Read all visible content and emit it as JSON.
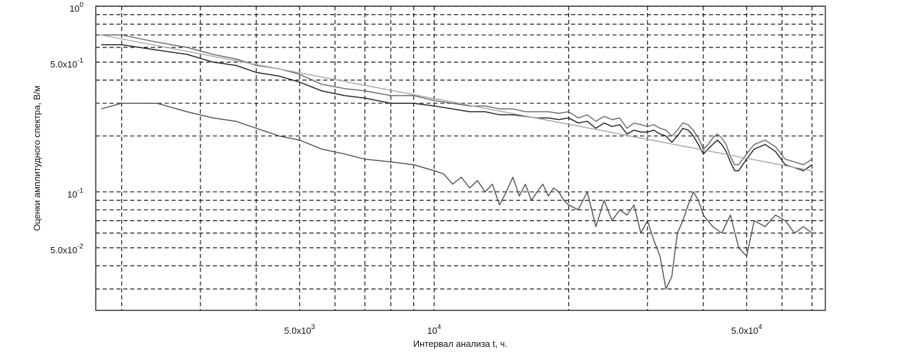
{
  "chart_data": {
    "type": "line",
    "xlabel": "Интервал анализа t, ч.",
    "ylabel": "Оценки амплитудного спектра, В/м",
    "xscale": "log",
    "yscale": "log",
    "xlim": [
      1750,
      75000
    ],
    "ylim": [
      0.023,
      1.0
    ],
    "x_ticks": [
      {
        "value": 5000,
        "mantissa": "5.0x10",
        "exp": "3"
      },
      {
        "value": 10000,
        "mantissa": "10",
        "exp": "4"
      },
      {
        "value": 50000,
        "mantissa": "5.0x10",
        "exp": "4"
      }
    ],
    "y_ticks": [
      {
        "value": 1.0,
        "mantissa": "10",
        "exp": "0"
      },
      {
        "value": 0.5,
        "mantissa": "5.0x10",
        "exp": "-1"
      },
      {
        "value": 0.1,
        "mantissa": "10",
        "exp": "-1"
      },
      {
        "value": 0.05,
        "mantissa": "5.0x10",
        "exp": "-2"
      }
    ],
    "x_gridlines": [
      2000,
      3000,
      4000,
      5000,
      6000,
      7000,
      8000,
      9000,
      10000,
      20000,
      30000,
      40000,
      50000,
      60000,
      70000
    ],
    "y_gridlines": [
      0.03,
      0.04,
      0.05,
      0.06,
      0.07,
      0.08,
      0.09,
      0.1,
      0.2,
      0.3,
      0.4,
      0.5,
      0.6,
      0.7,
      0.8,
      0.9,
      1.0
    ],
    "grid": true,
    "series": [
      {
        "color": "#222222",
        "x": [
          1800,
          2000,
          2400,
          2800,
          3200,
          3600,
          4000,
          4500,
          5000,
          5600,
          6300,
          7000,
          8000,
          9000,
          10000,
          11000,
          12000,
          13000,
          14000,
          15000,
          16000,
          17000,
          18000,
          19000,
          20000,
          21000,
          22000,
          23000,
          24000,
          25000,
          26000,
          27000,
          28000,
          29000,
          30000,
          31000,
          32000,
          33000,
          34000,
          35000,
          36000,
          37000,
          38000,
          39000,
          40000,
          41000,
          42000,
          43000,
          44000,
          45000,
          46000,
          47000,
          48000,
          49000,
          50000,
          52000,
          55000,
          58000,
          61000,
          64000,
          67000,
          70000
        ],
        "y": [
          0.62,
          0.62,
          0.58,
          0.55,
          0.5,
          0.48,
          0.44,
          0.42,
          0.39,
          0.35,
          0.33,
          0.32,
          0.3,
          0.3,
          0.29,
          0.28,
          0.27,
          0.27,
          0.26,
          0.26,
          0.255,
          0.25,
          0.25,
          0.245,
          0.25,
          0.235,
          0.24,
          0.22,
          0.235,
          0.225,
          0.23,
          0.205,
          0.215,
          0.21,
          0.21,
          0.215,
          0.205,
          0.2,
          0.185,
          0.2,
          0.22,
          0.215,
          0.2,
          0.18,
          0.16,
          0.17,
          0.18,
          0.19,
          0.18,
          0.165,
          0.145,
          0.13,
          0.13,
          0.14,
          0.15,
          0.17,
          0.18,
          0.165,
          0.14,
          0.135,
          0.13,
          0.14
        ]
      },
      {
        "color": "#6a6a6a",
        "x": [
          1800,
          2000,
          2400,
          2800,
          3200,
          3600,
          4000,
          4500,
          5000,
          5600,
          6300,
          7000,
          8000,
          9000,
          10000,
          11000,
          12000,
          13000,
          14000,
          15000,
          16000,
          17000,
          18000,
          19000,
          20000,
          21000,
          22000,
          23000,
          24000,
          25000,
          26000,
          27000,
          28000,
          29000,
          30000,
          31000,
          32000,
          33000,
          34000,
          35000,
          36000,
          37000,
          38000,
          39000,
          40000,
          41000,
          42000,
          43000,
          44000,
          45000,
          46000,
          47000,
          48000,
          49000,
          50000,
          52000,
          55000,
          58000,
          61000,
          64000,
          67000,
          70000
        ],
        "y": [
          0.7,
          0.7,
          0.64,
          0.6,
          0.55,
          0.52,
          0.48,
          0.46,
          0.43,
          0.38,
          0.36,
          0.35,
          0.33,
          0.33,
          0.31,
          0.3,
          0.29,
          0.29,
          0.28,
          0.28,
          0.27,
          0.27,
          0.27,
          0.265,
          0.27,
          0.25,
          0.26,
          0.24,
          0.255,
          0.245,
          0.25,
          0.22,
          0.235,
          0.23,
          0.225,
          0.23,
          0.22,
          0.215,
          0.2,
          0.215,
          0.235,
          0.23,
          0.215,
          0.195,
          0.17,
          0.18,
          0.195,
          0.205,
          0.195,
          0.18,
          0.155,
          0.14,
          0.14,
          0.15,
          0.16,
          0.18,
          0.19,
          0.175,
          0.15,
          0.145,
          0.14,
          0.15
        ]
      },
      {
        "color": "#555555",
        "x": [
          1800,
          2000,
          2400,
          2800,
          3200,
          3600,
          4000,
          4500,
          5000,
          5600,
          6300,
          7000,
          8000,
          9000,
          10000,
          10500,
          11000,
          11500,
          12000,
          12500,
          13000,
          13500,
          14000,
          14500,
          15000,
          15500,
          16000,
          16500,
          17000,
          17500,
          18000,
          18500,
          19000,
          19500,
          20000,
          21000,
          22000,
          23000,
          24000,
          25000,
          26000,
          27000,
          28000,
          29000,
          30000,
          31000,
          32000,
          33000,
          34000,
          35000,
          36000,
          37000,
          38000,
          39000,
          40000,
          42000,
          44000,
          46000,
          48000,
          50000,
          52000,
          55000,
          58000,
          61000,
          64000,
          67000,
          70000
        ],
        "y": [
          0.28,
          0.3,
          0.3,
          0.27,
          0.25,
          0.24,
          0.22,
          0.2,
          0.19,
          0.17,
          0.16,
          0.15,
          0.145,
          0.14,
          0.13,
          0.125,
          0.11,
          0.12,
          0.105,
          0.115,
          0.1,
          0.11,
          0.085,
          0.1,
          0.12,
          0.095,
          0.11,
          0.09,
          0.1,
          0.11,
          0.095,
          0.105,
          0.1,
          0.09,
          0.085,
          0.08,
          0.1,
          0.065,
          0.09,
          0.07,
          0.08,
          0.075,
          0.085,
          0.06,
          0.07,
          0.055,
          0.045,
          0.03,
          0.035,
          0.06,
          0.07,
          0.085,
          0.1,
          0.09,
          0.075,
          0.065,
          0.06,
          0.075,
          0.05,
          0.045,
          0.07,
          0.065,
          0.075,
          0.07,
          0.06,
          0.065,
          0.06
        ]
      },
      {
        "color": "#a8a8a8",
        "x": [
          1800,
          70000
        ],
        "y": [
          0.7,
          0.13
        ]
      }
    ]
  }
}
